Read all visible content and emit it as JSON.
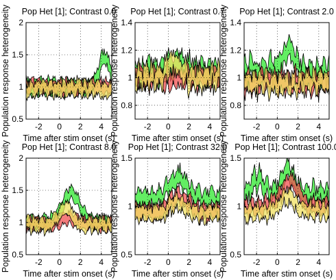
{
  "chart_data": [
    {
      "type": "area",
      "title": "Pop Het [1]; Contrast 0.0",
      "xlabel": "Time after stim onset (s)",
      "ylabel": "Population response heterogeneity",
      "xlim": [
        -3.2,
        5.0
      ],
      "ylim": [
        0.5,
        2.0
      ],
      "xticks": [
        -2,
        0,
        2,
        4
      ],
      "yticks": [
        0.5,
        1,
        1.5,
        2
      ],
      "ytick_labels": [
        "0.5",
        "1",
        "1.5",
        "2"
      ],
      "grid": true,
      "series": [
        {
          "color": "#2fe82f",
          "center": 1.0,
          "noise": 0.07,
          "peaks": [
            [
              4.3,
              0.45,
              0.5
            ]
          ]
        },
        {
          "color": "#f05050",
          "center": 1.0,
          "noise": 0.06,
          "peaks": []
        },
        {
          "color": "#f0e060",
          "center": 0.97,
          "noise": 0.07,
          "peaks": []
        }
      ]
    },
    {
      "type": "area",
      "title": "Pop Het [1]; Contrast 0.7",
      "xlabel": "Time after stim onset (s)",
      "ylabel": "Population response heterogeneity",
      "xlim": [
        -3.2,
        5.0
      ],
      "ylim": [
        0.7,
        1.4
      ],
      "xticks": [
        -2,
        0,
        2,
        4
      ],
      "yticks": [
        0.8,
        1.0,
        1.2,
        1.4
      ],
      "ytick_labels": [
        "0.8",
        "1",
        "1.2",
        "1.4"
      ],
      "grid": true,
      "series": [
        {
          "color": "#2fe82f",
          "center": 1.03,
          "noise": 0.06,
          "peaks": [
            [
              1.0,
              0.06,
              1.0
            ]
          ]
        },
        {
          "color": "#f05050",
          "center": 1.0,
          "noise": 0.05,
          "peaks": []
        },
        {
          "color": "#f0e060",
          "center": 1.0,
          "noise": 0.06,
          "peaks": [
            [
              0.5,
              0.1,
              0.6
            ]
          ]
        }
      ]
    },
    {
      "type": "area",
      "title": "Pop Het [1]; Contrast 2.0",
      "xlabel": "Time after stim onset (s)",
      "ylabel": "Population response heterogeneity",
      "xlim": [
        -3.2,
        5.0
      ],
      "ylim": [
        0.7,
        1.4
      ],
      "xticks": [
        -2,
        0,
        2,
        4
      ],
      "yticks": [
        0.8,
        1.0,
        1.2,
        1.4
      ],
      "ytick_labels": [
        "0.8",
        "1",
        "1.2",
        "1.4"
      ],
      "grid": true,
      "series": [
        {
          "color": "#2fe82f",
          "center": 1.05,
          "noise": 0.06,
          "peaks": [
            [
              1.1,
              0.14,
              0.5
            ]
          ]
        },
        {
          "color": "#f05050",
          "center": 0.97,
          "noise": 0.05,
          "peaks": []
        },
        {
          "color": "#f0e060",
          "center": 0.96,
          "noise": 0.05,
          "peaks": []
        }
      ]
    },
    {
      "type": "area",
      "title": "Pop Het [1]; Contrast 8.0",
      "xlabel": "Time after stim onset (s)",
      "ylabel": "Population response heterogeneity",
      "xlim": [
        -3.2,
        5.0
      ],
      "ylim": [
        0.5,
        2.0
      ],
      "xticks": [
        -2,
        0,
        2,
        4
      ],
      "yticks": [
        0.5,
        1,
        1.5,
        2
      ],
      "ytick_labels": [
        "0.5",
        "1",
        "1.5",
        "2"
      ],
      "grid": true,
      "series": [
        {
          "color": "#2fe82f",
          "center": 1.0,
          "noise": 0.05,
          "peaks": [
            [
              1.1,
              0.45,
              0.8
            ]
          ]
        },
        {
          "color": "#f05050",
          "center": 0.97,
          "noise": 0.05,
          "peaks": [
            [
              0.9,
              0.1,
              0.8
            ]
          ]
        },
        {
          "color": "#f0e060",
          "center": 0.97,
          "noise": 0.06,
          "peaks": [
            [
              0.6,
              0.25,
              0.6
            ]
          ]
        }
      ]
    },
    {
      "type": "area",
      "title": "Pop Het [1]; Contrast 32.0",
      "xlabel": "Time after stim onset (s)",
      "ylabel": "Population response heterogeneity",
      "xlim": [
        -3.2,
        5.0
      ],
      "ylim": [
        0.5,
        1.5
      ],
      "xticks": [
        -2,
        0,
        2,
        4
      ],
      "yticks": [
        0.5,
        1,
        1.5
      ],
      "ytick_labels": [
        "0.5",
        "1",
        "1.5"
      ],
      "grid": true,
      "series": [
        {
          "color": "#2fe82f",
          "center": 1.08,
          "noise": 0.06,
          "peaks": [
            [
              0.9,
              0.22,
              0.8
            ]
          ]
        },
        {
          "color": "#f05050",
          "center": 0.95,
          "noise": 0.05,
          "peaks": [
            [
              1.0,
              0.15,
              0.8
            ]
          ]
        },
        {
          "color": "#f0e060",
          "center": 0.93,
          "noise": 0.05,
          "peaks": [
            [
              0.9,
              0.12,
              0.7
            ]
          ]
        }
      ]
    },
    {
      "type": "area",
      "title": "Pop Het [1]; Contrast 100.0",
      "xlabel": "Time after stim onset (s)",
      "ylabel": "Population response heterogeneity",
      "xlim": [
        -3.2,
        5.0
      ],
      "ylim": [
        0.5,
        1.5
      ],
      "xticks": [
        -2,
        0,
        2,
        4
      ],
      "yticks": [
        0.5,
        1,
        1.5
      ],
      "ytick_labels": [
        "0.5",
        "1",
        "1.5"
      ],
      "grid": true,
      "series": [
        {
          "color": "#2fe82f",
          "center": 1.12,
          "noise": 0.07,
          "peaks": [
            [
              -1.8,
              0.15,
              0.6
            ],
            [
              1.0,
              0.25,
              0.6
            ]
          ]
        },
        {
          "color": "#f05050",
          "center": 1.0,
          "noise": 0.05,
          "peaks": [
            [
              1.2,
              0.25,
              0.8
            ]
          ]
        },
        {
          "color": "#f0e060",
          "center": 0.95,
          "noise": 0.05,
          "peaks": [
            [
              1.0,
              0.15,
              0.7
            ]
          ]
        }
      ]
    }
  ]
}
